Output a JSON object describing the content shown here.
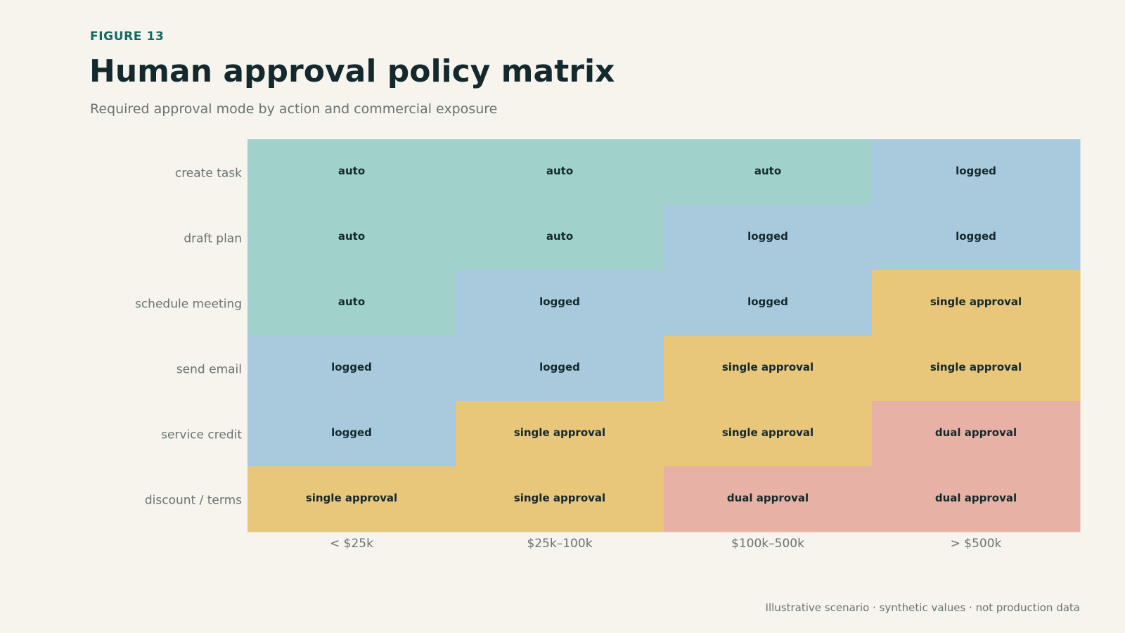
{
  "header": {
    "figure_label": "FIGURE 13",
    "title": "Human approval policy matrix",
    "subtitle": "Required approval mode by action and commercial exposure"
  },
  "footer": {
    "note": "Illustrative scenario · synthetic values · not production data"
  },
  "chart_data": {
    "type": "heatmap",
    "title": "Human approval policy matrix",
    "subtitle": "Required approval mode by action and commercial exposure",
    "x_categories": [
      "< $25k",
      "$25k–100k",
      "$100k–500k",
      "> $500k"
    ],
    "y_categories": [
      "create task",
      "draft plan",
      "schedule meeting",
      "send email",
      "service credit",
      "discount / terms"
    ],
    "cells": [
      [
        "auto",
        "auto",
        "auto",
        "logged"
      ],
      [
        "auto",
        "auto",
        "logged",
        "logged"
      ],
      [
        "auto",
        "logged",
        "logged",
        "single approval"
      ],
      [
        "logged",
        "logged",
        "single approval",
        "single approval"
      ],
      [
        "logged",
        "single approval",
        "single approval",
        "dual approval"
      ],
      [
        "single approval",
        "single approval",
        "dual approval",
        "dual approval"
      ]
    ],
    "category_colors": {
      "auto": "#a0d2cb",
      "logged": "#a9c9dc",
      "single approval": "#e8c67a",
      "dual approval": "#e7b2a5"
    },
    "legend": "none",
    "grid": false
  }
}
